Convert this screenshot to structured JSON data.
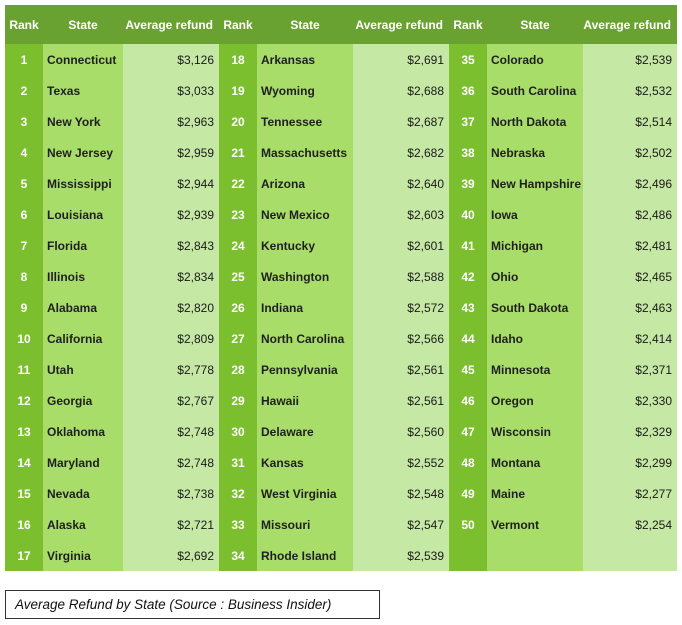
{
  "table": {
    "headers": [
      "Rank",
      "State",
      "Average refund",
      "Rank",
      "State",
      "Average refund",
      "Rank",
      "State",
      "Average refund"
    ],
    "columns": [
      [
        [
          "1",
          "Connecticut",
          "$3,126"
        ],
        [
          "2",
          "Texas",
          "$3,033"
        ],
        [
          "3",
          "New York",
          "$2,963"
        ],
        [
          "4",
          "New Jersey",
          "$2,959"
        ],
        [
          "5",
          "Mississippi",
          "$2,944"
        ],
        [
          "6",
          "Louisiana",
          "$2,939"
        ],
        [
          "7",
          "Florida",
          "$2,843"
        ],
        [
          "8",
          "Illinois",
          "$2,834"
        ],
        [
          "9",
          "Alabama",
          "$2,820"
        ],
        [
          "10",
          "California",
          "$2,809"
        ],
        [
          "11",
          "Utah",
          "$2,778"
        ],
        [
          "12",
          "Georgia",
          "$2,767"
        ],
        [
          "13",
          "Oklahoma",
          "$2,748"
        ],
        [
          "14",
          "Maryland",
          "$2,748"
        ],
        [
          "15",
          "Nevada",
          "$2,738"
        ],
        [
          "16",
          "Alaska",
          "$2,721"
        ],
        [
          "17",
          "Virginia",
          "$2,692"
        ]
      ],
      [
        [
          "18",
          "Arkansas",
          "$2,691"
        ],
        [
          "19",
          "Wyoming",
          "$2,688"
        ],
        [
          "20",
          "Tennessee",
          "$2,687"
        ],
        [
          "21",
          "Massachusetts",
          "$2,682"
        ],
        [
          "22",
          "Arizona",
          "$2,640"
        ],
        [
          "23",
          "New Mexico",
          "$2,603"
        ],
        [
          "24",
          "Kentucky",
          "$2,601"
        ],
        [
          "25",
          "Washington",
          "$2,588"
        ],
        [
          "26",
          "Indiana",
          "$2,572"
        ],
        [
          "27",
          "North Carolina",
          "$2,566"
        ],
        [
          "28",
          "Pennsylvania",
          "$2,561"
        ],
        [
          "29",
          "Hawaii",
          "$2,561"
        ],
        [
          "30",
          "Delaware",
          "$2,560"
        ],
        [
          "31",
          "Kansas",
          "$2,552"
        ],
        [
          "32",
          "West Virginia",
          "$2,548"
        ],
        [
          "33",
          "Missouri",
          "$2,547"
        ],
        [
          "34",
          "Rhode Island",
          "$2,539"
        ]
      ],
      [
        [
          "35",
          "Colorado",
          "$2,539"
        ],
        [
          "36",
          "South Carolina",
          "$2,532"
        ],
        [
          "37",
          "North Dakota",
          "$2,514"
        ],
        [
          "38",
          "Nebraska",
          "$2,502"
        ],
        [
          "39",
          "New Hampshire",
          "$2,496"
        ],
        [
          "40",
          "Iowa",
          "$2,486"
        ],
        [
          "41",
          "Michigan",
          "$2,481"
        ],
        [
          "42",
          "Ohio",
          "$2,465"
        ],
        [
          "43",
          "South Dakota",
          "$2,463"
        ],
        [
          "44",
          "Idaho",
          "$2,414"
        ],
        [
          "45",
          "Minnesota",
          "$2,371"
        ],
        [
          "46",
          "Oregon",
          "$2,330"
        ],
        [
          "47",
          "Wisconsin",
          "$2,329"
        ],
        [
          "48",
          "Montana",
          "$2,299"
        ],
        [
          "49",
          "Maine",
          "$2,277"
        ],
        [
          "50",
          "Vermont",
          "$2,254"
        ]
      ]
    ]
  },
  "caption": "Average Refund by State (Source : Business Insider)",
  "colors": {
    "header_bg": "#6aa232",
    "rank_bg": "#7bbf2f",
    "state_bg": "#a9dd6a",
    "value_bg": "#c6e8a5"
  }
}
